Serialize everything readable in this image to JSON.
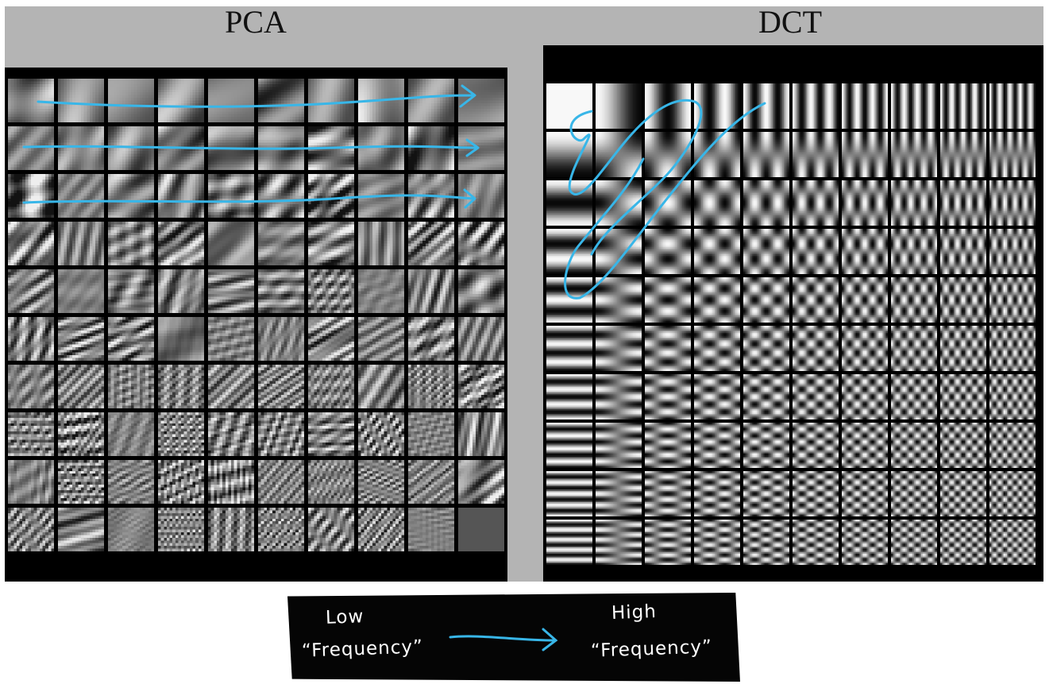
{
  "titles": {
    "left": "PCA",
    "right": "DCT"
  },
  "grids": {
    "pca_rows": 10,
    "pca_cols": 10,
    "dct_rows": 10,
    "dct_cols": 10
  },
  "legend": {
    "low_word": "Low",
    "low_freq": "“Frequency”",
    "high_word": "High",
    "high_freq": "“Frequency”"
  },
  "colors": {
    "annotation": "#38b6e8",
    "background": "#b4b4b4",
    "legend_bg": "#050505"
  }
}
